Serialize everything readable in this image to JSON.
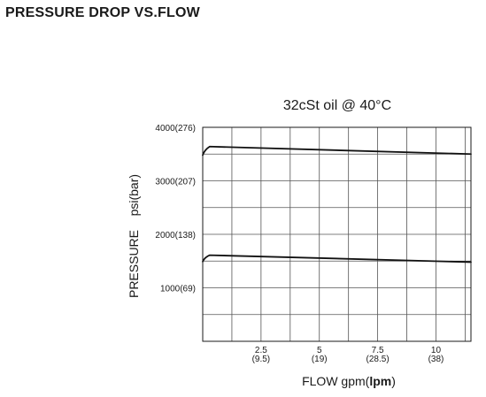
{
  "page": {
    "title": "PRESSURE DROP VS.FLOW"
  },
  "chart_data": {
    "type": "line",
    "title": "32cSt oil @ 40°C",
    "xlabel_prefix": "FLOW gpm(",
    "xlabel_unit": "lpm",
    "xlabel_suffix": ")",
    "ylabel": "PRESSURE    psi(bar)",
    "xlim": [
      0,
      11.5
    ],
    "ylim": [
      0,
      4000
    ],
    "grid": true,
    "x_ticks": [
      {
        "value": 2.5,
        "label": "2.5",
        "sublabel": "(9.5)"
      },
      {
        "value": 5,
        "label": "5",
        "sublabel": "(19)"
      },
      {
        "value": 7.5,
        "label": "7.5",
        "sublabel": "(28.5)"
      },
      {
        "value": 10,
        "label": "10",
        "sublabel": "(38)"
      }
    ],
    "y_ticks": [
      {
        "value": 1000,
        "label": "1000(69)"
      },
      {
        "value": 2000,
        "label": "2000(138)"
      },
      {
        "value": 3000,
        "label": "3000(207)"
      },
      {
        "value": 4000,
        "label": "4000(276)"
      }
    ],
    "series": [
      {
        "x": [
          0,
          0.08,
          0.3,
          11.5
        ],
        "y": [
          3480,
          3580,
          3640,
          3500
        ]
      },
      {
        "x": [
          0,
          0.08,
          0.3,
          11.5
        ],
        "y": [
          1490,
          1570,
          1610,
          1480
        ]
      }
    ]
  }
}
